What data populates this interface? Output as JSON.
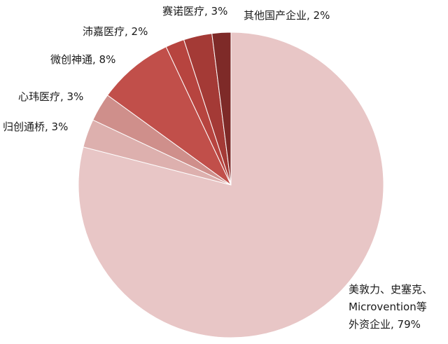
{
  "chart_data": {
    "type": "pie",
    "title": "",
    "slices": [
      {
        "label": "美敦力、史塞克、Microvention等外资企业",
        "value": 79,
        "label_lines": [
          "美敦力、史塞克、",
          "Microvention等",
          "外资企业, 79%"
        ],
        "color": "#E8C6C6"
      },
      {
        "label": "归创通桥",
        "value": 3,
        "label_lines": [
          "归创通桥, 3%"
        ],
        "color": "#DDB0AE"
      },
      {
        "label": "心玮医疗",
        "value": 3,
        "label_lines": [
          "心玮医疗, 3%"
        ],
        "color": "#CF8F8B"
      },
      {
        "label": "微创神通",
        "value": 8,
        "label_lines": [
          "微创神通, 8%"
        ],
        "color": "#C14F4A"
      },
      {
        "label": "沛嘉医疗",
        "value": 2,
        "label_lines": [
          "沛嘉医疗, 2%"
        ],
        "color": "#B7443F"
      },
      {
        "label": "赛诺医疗",
        "value": 3,
        "label_lines": [
          "赛诺医疗, 3%"
        ],
        "color": "#A43A36"
      },
      {
        "label": "其他国产企业",
        "value": 2,
        "label_lines": [
          "其他国产企业, 2%"
        ],
        "color": "#7E2A28"
      }
    ]
  }
}
